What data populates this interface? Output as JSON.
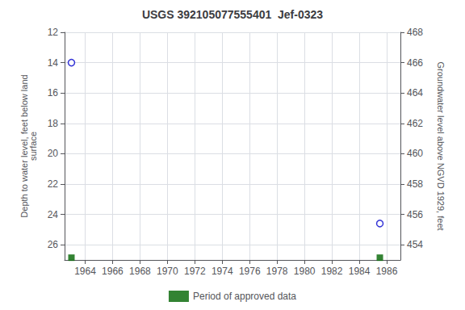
{
  "chart_data": {
    "type": "scatter",
    "title": "USGS 392105077555401  Jef-0323",
    "y_label": "Depth to water level, feet below land\nsurface",
    "y2_label": "Groundwater level above NGVD 1929, feet",
    "x": [
      1963.0,
      1985.5
    ],
    "series": [
      {
        "color": "#0000cc",
        "marker": "open_circle",
        "values": [
          14.0,
          24.6
        ]
      },
      {
        "name": "Period of approved data",
        "color": "#006400",
        "marker": "square",
        "values": [
          26.85,
          26.85
        ]
      }
    ],
    "xlim": [
      1962.5,
      1987.0
    ],
    "xticks": [
      1964,
      1966,
      1968,
      1970,
      1972,
      1974,
      1976,
      1978,
      1980,
      1982,
      1984,
      1986
    ],
    "ylim": [
      27.0,
      12.0
    ],
    "yticks": [
      12,
      14,
      16,
      18,
      20,
      22,
      24,
      26
    ],
    "y2lim": [
      453.0,
      468.0
    ],
    "y2ticks": [
      468,
      466,
      464,
      462,
      460,
      458,
      456,
      454
    ],
    "grid": true,
    "legend": "bottom"
  }
}
